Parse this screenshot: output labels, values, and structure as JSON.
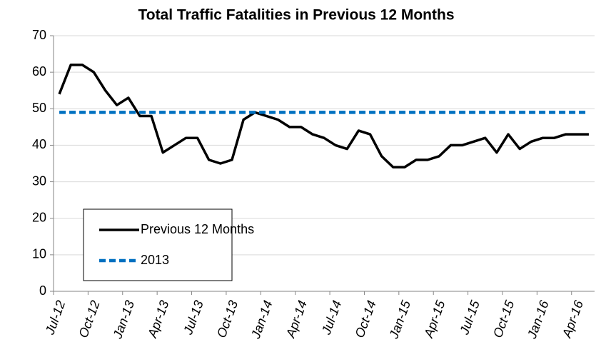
{
  "chart_data": {
    "type": "line",
    "title": "Total Traffic Fatalities in Previous 12 Months",
    "categories": [
      "Jul-12",
      null,
      null,
      "Oct-12",
      null,
      null,
      "Jan-13",
      null,
      null,
      "Apr-13",
      null,
      null,
      "Jul-13",
      null,
      null,
      "Oct-13",
      null,
      null,
      "Jan-14",
      null,
      null,
      "Apr-14",
      null,
      null,
      "Jul-14",
      null,
      null,
      "Oct-14",
      null,
      null,
      "Jan-15",
      null,
      null,
      "Apr-15",
      null,
      null,
      "Jul-15",
      null,
      null,
      "Oct-15",
      null,
      null,
      "Jan-16",
      null,
      null,
      "Apr-16",
      null
    ],
    "series": [
      {
        "name": "Previous 12 Months",
        "color": "#000000",
        "dash": false,
        "values": [
          54,
          62,
          62,
          60,
          55,
          51,
          53,
          48,
          48,
          38,
          40,
          42,
          42,
          36,
          35,
          36,
          47,
          49,
          48,
          47,
          45,
          45,
          43,
          42,
          40,
          39,
          44,
          43,
          37,
          34,
          34,
          36,
          36,
          37,
          40,
          40,
          41,
          42,
          38,
          43,
          39,
          41,
          42,
          42,
          43,
          43,
          43
        ]
      },
      {
        "name": "2013",
        "color": "#0070c0",
        "dash": true,
        "values": [
          49,
          49,
          49,
          49,
          49,
          49,
          49,
          49,
          49,
          49,
          49,
          49,
          49,
          49,
          49,
          49,
          49,
          49,
          49,
          49,
          49,
          49,
          49,
          49,
          49,
          49,
          49,
          49,
          49,
          49,
          49,
          49,
          49,
          49,
          49,
          49,
          49,
          49,
          49,
          49,
          49,
          49,
          49,
          49,
          49,
          49,
          49
        ]
      }
    ],
    "ylim": [
      0,
      70
    ],
    "yticks": [
      0,
      10,
      20,
      30,
      40,
      50,
      60,
      70
    ],
    "grid": true,
    "legend": "lower left"
  }
}
